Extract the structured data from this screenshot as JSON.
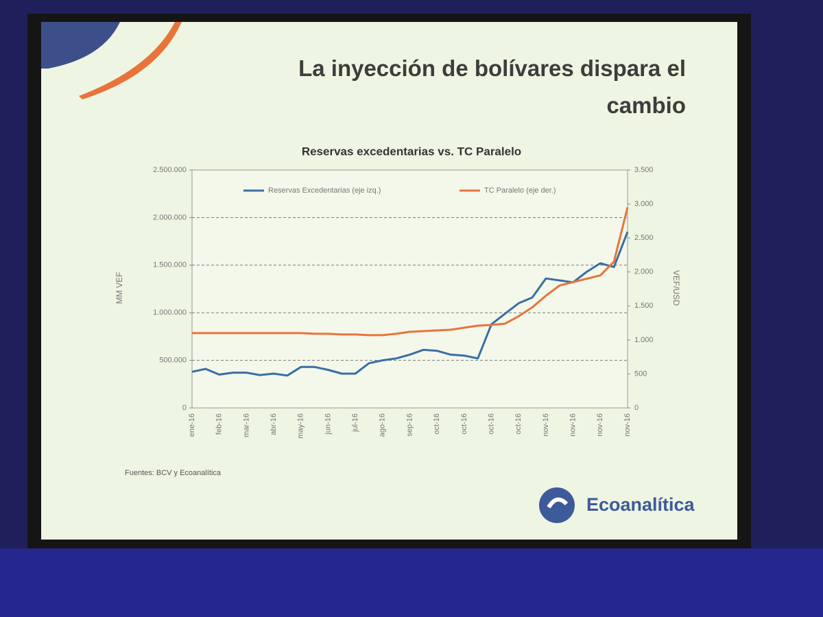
{
  "slide": {
    "title": "La inyección de bolívares dispara el cambio",
    "source": "Fuentes: BCV y Ecoanalítica",
    "logo": "Ecoanalítica"
  },
  "chart_data": {
    "type": "line",
    "title": "Reservas excedentarias vs. TC Paralelo",
    "y_label": "MM VEF",
    "y2_label": "VEF/USD",
    "categories": [
      "ene-16",
      null,
      "feb-16",
      null,
      "mar-16",
      null,
      "abr-16",
      null,
      "may-16",
      null,
      "jun-16",
      null,
      "jul-16",
      null,
      "ago-16",
      null,
      "sep-16",
      null,
      "oct-16",
      null,
      "oct-16",
      null,
      "oct-16",
      null,
      "oct-16",
      null,
      "nov-16",
      null,
      "nov-16",
      null,
      "nov-16",
      null,
      "nov-16"
    ],
    "series": [
      {
        "name": "Reservas Excedentarias (eje izq.)",
        "color": "#3a6ea5",
        "values": [
          380000,
          410000,
          350000,
          370000,
          370000,
          345000,
          360000,
          340000,
          430000,
          430000,
          400000,
          360000,
          360000,
          470000,
          500000,
          520000,
          560000,
          610000,
          600000,
          560000,
          550000,
          520000,
          880000,
          990000,
          1100000,
          1160000,
          1360000,
          1340000,
          1320000,
          1430000,
          1520000,
          1480000,
          1850000
        ]
      },
      {
        "name": "TC Paralelo (eje der.)",
        "color": "#e8743b",
        "axis": "y2",
        "values": [
          1100,
          1100,
          1100,
          1100,
          1100,
          1100,
          1100,
          1100,
          1100,
          1090,
          1090,
          1080,
          1080,
          1070,
          1070,
          1090,
          1120,
          1130,
          1140,
          1150,
          1180,
          1210,
          1220,
          1240,
          1350,
          1480,
          1650,
          1800,
          1850,
          1900,
          1950,
          2150,
          2950
        ]
      }
    ],
    "ylim": [
      0,
      2500000
    ],
    "yticks": [
      0,
      {
        "value": 500000,
        "label": "500.000"
      },
      {
        "value": 1000000,
        "label": "1.000.000"
      },
      {
        "value": 1500000,
        "label": "1.500.000"
      },
      {
        "value": 2000000,
        "label": "2.000.000"
      },
      {
        "value": 2500000,
        "label": "2.500.000"
      }
    ],
    "y2lim": [
      0,
      3500
    ],
    "y2ticks": [
      0,
      500,
      {
        "value": 1000,
        "label": "1.000"
      },
      {
        "value": 1500,
        "label": "1.500"
      },
      {
        "value": 2000,
        "label": "2.000"
      },
      {
        "value": 2500,
        "label": "2.500"
      },
      {
        "value": 3000,
        "label": "3.000"
      },
      {
        "value": 3500,
        "label": "3.500"
      }
    ],
    "grid": true,
    "legend": "top"
  }
}
